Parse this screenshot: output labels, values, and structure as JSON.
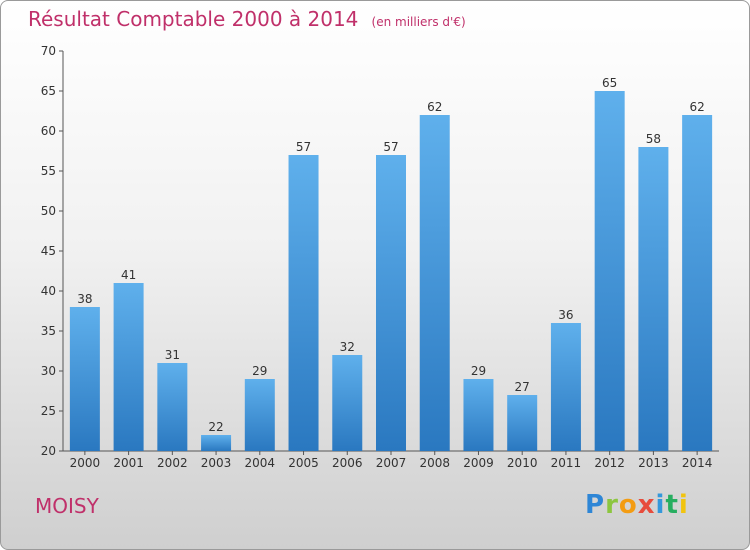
{
  "header": {
    "title": "Résultat Comptable 2000 à 2014",
    "unit": "(en milliers d'€)"
  },
  "commune": "MOISY",
  "logo": {
    "letters": [
      "P",
      "r",
      "o",
      "x",
      "i",
      "t",
      "i"
    ],
    "colors": [
      "#2e86d6",
      "#8cc63f",
      "#f39c12",
      "#e74c3c",
      "#3498db",
      "#27ae60",
      "#f1c40f"
    ]
  },
  "chart_data": {
    "type": "bar",
    "title": "Résultat Comptable 2000 à 2014",
    "xlabel": "",
    "ylabel": "",
    "categories": [
      "2000",
      "2001",
      "2002",
      "2003",
      "2004",
      "2005",
      "2006",
      "2007",
      "2008",
      "2009",
      "2010",
      "2011",
      "2012",
      "2013",
      "2014"
    ],
    "values": [
      38,
      41,
      31,
      22,
      29,
      57,
      32,
      57,
      62,
      29,
      27,
      36,
      65,
      58,
      62
    ],
    "ylim": [
      20,
      70
    ],
    "yticks": [
      20,
      25,
      30,
      35,
      40,
      45,
      50,
      55,
      60,
      65,
      70
    ],
    "grid": false,
    "bar_color": "#3a8fd8"
  }
}
